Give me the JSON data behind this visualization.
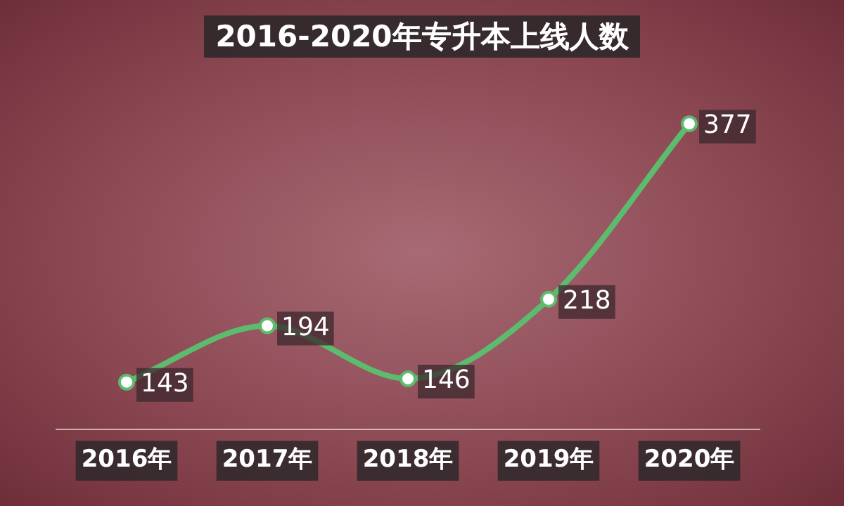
{
  "chart_data": {
    "type": "line",
    "title": "2016-2020年专升本上线人数",
    "categories": [
      "2016年",
      "2017年",
      "2018年",
      "2019年",
      "2020年"
    ],
    "series": [
      {
        "color": "#5dbb6e",
        "values": [
          143,
          194,
          146,
          218,
          377
        ]
      }
    ],
    "data_labels": true,
    "marker": "circle",
    "line_style": "solid",
    "grid": false,
    "legend": false
  }
}
